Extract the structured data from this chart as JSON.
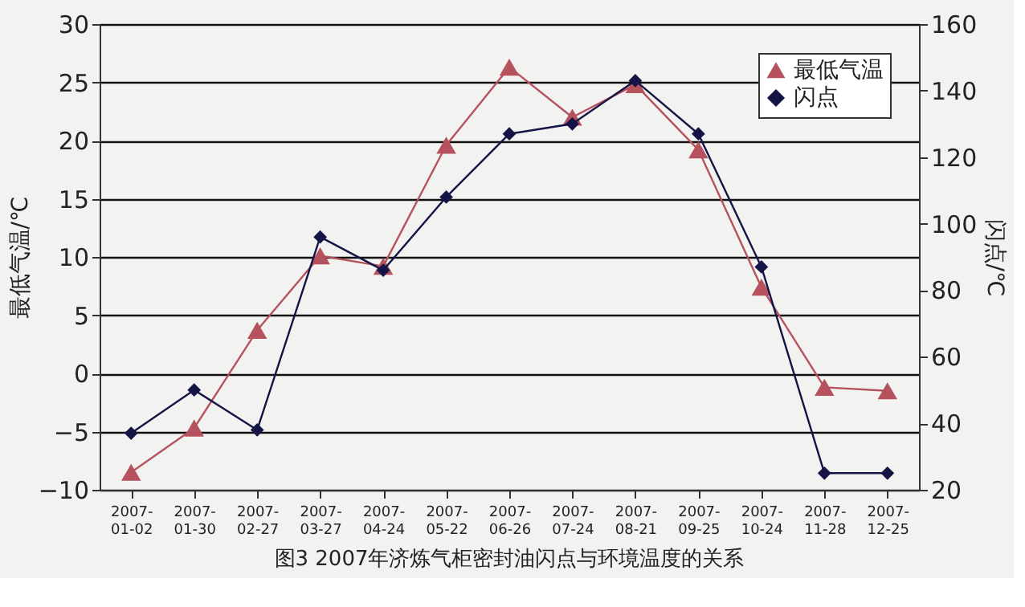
{
  "chart_data": {
    "type": "line",
    "categories": [
      "2007-01-02",
      "2007-01-30",
      "2007-02-27",
      "2007-03-27",
      "2007-04-24",
      "2007-05-22",
      "2007-06-26",
      "2007-07-24",
      "2007-08-21",
      "2007-09-25",
      "2007-10-24",
      "2007-11-28",
      "2007-12-25"
    ],
    "series": [
      {
        "name": "最低气温",
        "color": "#b5525e",
        "marker": "triangle",
        "values": [
          -8.5,
          -4.7,
          3.7,
          10.1,
          9.2,
          19.6,
          26.3,
          22.0,
          24.8,
          19.2,
          7.4,
          -1.2,
          -1.5
        ]
      },
      {
        "name": "闪点",
        "color": "#141446",
        "marker": "diamond",
        "axis": "y2",
        "values": [
          37,
          50,
          38,
          96,
          86,
          108,
          127,
          130,
          143,
          127,
          87,
          25,
          25
        ]
      }
    ],
    "ylabel": "最低气温/℃",
    "y2label": "闪点/℃",
    "ylim": [
      -10,
      30
    ],
    "yticks": [
      -10,
      -5,
      0,
      5,
      10,
      15,
      20,
      25,
      30
    ],
    "y2lim": [
      20,
      160
    ],
    "y2ticks": [
      20,
      40,
      60,
      80,
      100,
      120,
      140,
      160
    ],
    "grid": "y",
    "legend": "top right",
    "annotations": [
      "图3  2007年济炼气柜密封油闪点与环境温度的关系"
    ]
  }
}
